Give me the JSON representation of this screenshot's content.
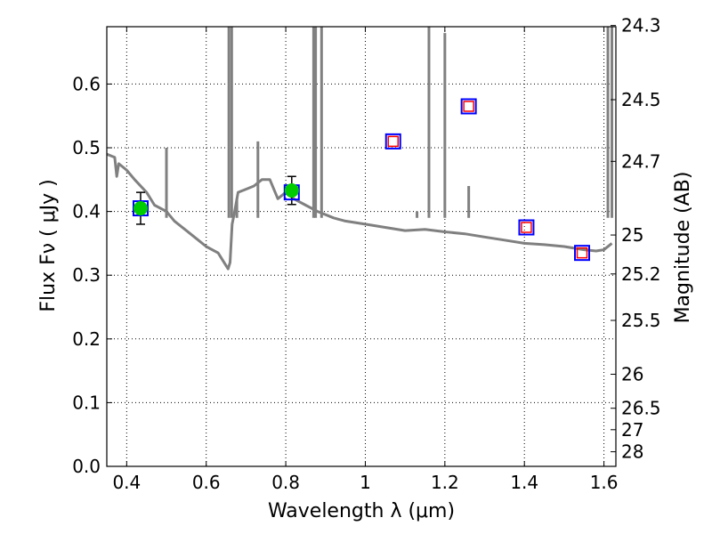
{
  "chart_data": {
    "type": "line",
    "xlabel": "Wavelength  λ (μm)",
    "ylabel": "Flux  Fν  ( μJy )",
    "ylabel_right": "Magnitude (AB)",
    "xlim": [
      0.35,
      1.63
    ],
    "ylim": [
      0.0,
      0.69
    ],
    "grid": true,
    "x_ticks": [
      0.4,
      0.6,
      0.8,
      1.0,
      1.2,
      1.4,
      1.6
    ],
    "x_tick_labels": [
      "0.4",
      "0.6",
      "0.8",
      "1",
      "1.2",
      "1.4",
      "1.6"
    ],
    "y_ticks": [
      0.0,
      0.1,
      0.2,
      0.3,
      0.4,
      0.5,
      0.6
    ],
    "y_tick_labels": [
      "0.0",
      "0.1",
      "0.2",
      "0.3",
      "0.4",
      "0.5",
      "0.6"
    ],
    "right_ticks": [
      "24.3",
      "24.5",
      "24.7",
      "25",
      "25.2",
      "25.5",
      "26",
      "26.5",
      "27",
      "28"
    ],
    "colors": {
      "spectrum": "#808080",
      "observed_fill": "#00cc00",
      "box_outline": "#0000ff",
      "model_marker": "#ff0000",
      "error_bar": "#000000",
      "grid": "#000000"
    },
    "series": [
      {
        "type": "line",
        "x": [
          0.35,
          0.37,
          0.375,
          0.38,
          0.39,
          0.4,
          0.42,
          0.45,
          0.47,
          0.5,
          0.52,
          0.55,
          0.58,
          0.6,
          0.63,
          0.645,
          0.655,
          0.66,
          0.665,
          0.67,
          0.68,
          0.7,
          0.72,
          0.74,
          0.76,
          0.78,
          0.8,
          0.82,
          0.85,
          0.88,
          0.9,
          0.92,
          0.95,
          1.0,
          1.05,
          1.1,
          1.15,
          1.2,
          1.25,
          1.3,
          1.35,
          1.4,
          1.45,
          1.5,
          1.55,
          1.58,
          1.6,
          1.62
        ],
        "y": [
          0.49,
          0.485,
          0.455,
          0.475,
          0.47,
          0.465,
          0.45,
          0.43,
          0.41,
          0.4,
          0.385,
          0.37,
          0.355,
          0.345,
          0.335,
          0.32,
          0.31,
          0.32,
          0.38,
          0.395,
          0.43,
          0.435,
          0.44,
          0.45,
          0.45,
          0.42,
          0.43,
          0.42,
          0.41,
          0.4,
          0.395,
          0.39,
          0.385,
          0.38,
          0.375,
          0.37,
          0.372,
          0.368,
          0.365,
          0.36,
          0.355,
          0.35,
          0.348,
          0.345,
          0.34,
          0.338,
          0.34,
          0.35
        ]
      },
      {
        "type": "scatter",
        "x": [
          0.435,
          0.815
        ],
        "y": [
          0.405,
          0.433
        ],
        "yerr": [
          0.025,
          0.022
        ]
      },
      {
        "type": "scatter",
        "x": [
          0.435,
          0.815,
          1.07,
          1.26,
          1.405,
          1.545
        ],
        "y": [
          0.405,
          0.43,
          0.51,
          0.565,
          0.375,
          0.335
        ]
      },
      {
        "type": "scatter",
        "x": [
          1.07,
          1.26,
          1.405,
          1.545
        ],
        "y": [
          0.51,
          0.565,
          0.375,
          0.335
        ]
      }
    ]
  }
}
